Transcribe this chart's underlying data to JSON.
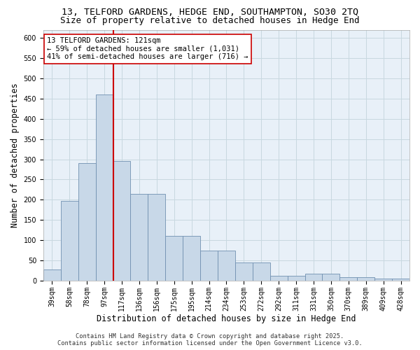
{
  "title_line1": "13, TELFORD GARDENS, HEDGE END, SOUTHAMPTON, SO30 2TQ",
  "title_line2": "Size of property relative to detached houses in Hedge End",
  "xlabel": "Distribution of detached houses by size in Hedge End",
  "ylabel": "Number of detached properties",
  "categories": [
    "39sqm",
    "58sqm",
    "78sqm",
    "97sqm",
    "117sqm",
    "136sqm",
    "156sqm",
    "175sqm",
    "195sqm",
    "214sqm",
    "234sqm",
    "253sqm",
    "272sqm",
    "292sqm",
    "311sqm",
    "331sqm",
    "350sqm",
    "370sqm",
    "389sqm",
    "409sqm",
    "428sqm"
  ],
  "bar_heights": [
    28,
    197,
    290,
    460,
    295,
    215,
    215,
    110,
    110,
    75,
    75,
    45,
    45,
    12,
    12,
    18,
    18,
    9,
    9,
    5,
    5
  ],
  "bar_color": "#c8d8e8",
  "bar_edge_color": "#7090b0",
  "vline_color": "#cc0000",
  "vline_x_index": 4,
  "annotation_text": "13 TELFORD GARDENS: 121sqm\n← 59% of detached houses are smaller (1,031)\n41% of semi-detached houses are larger (716) →",
  "annotation_box_color": "#ffffff",
  "annotation_box_edge": "#cc0000",
  "ylim": [
    0,
    620
  ],
  "yticks": [
    0,
    50,
    100,
    150,
    200,
    250,
    300,
    350,
    400,
    450,
    500,
    550,
    600
  ],
  "grid_color": "#c8d8e0",
  "background_color": "#e8f0f8",
  "footer_line1": "Contains HM Land Registry data © Crown copyright and database right 2025.",
  "footer_line2": "Contains public sector information licensed under the Open Government Licence v3.0.",
  "title_fontsize": 9.5,
  "subtitle_fontsize": 9,
  "tick_fontsize": 7,
  "label_fontsize": 8.5,
  "annotation_fontsize": 7.5,
  "footer_fontsize": 6.2
}
